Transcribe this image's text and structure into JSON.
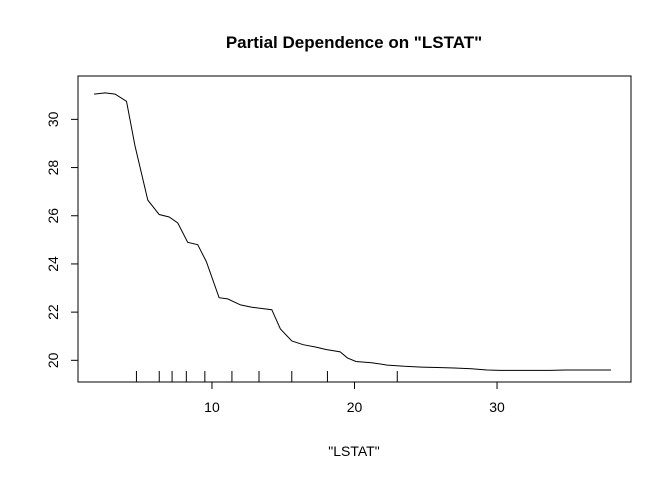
{
  "chart_data": {
    "type": "line",
    "title": "Partial Dependence on \"LSTAT\"",
    "xlabel": "\"LSTAT\"",
    "ylabel": "",
    "xlim": [
      0.6,
      39.4
    ],
    "ylim": [
      19.1,
      31.8
    ],
    "x_ticks": [
      10,
      20,
      30
    ],
    "y_ticks": [
      20,
      22,
      24,
      26,
      28,
      30
    ],
    "grid": false,
    "legend": "none",
    "series": [
      {
        "x": [
          1.73,
          2.5,
          3.2,
          4.0,
          4.6,
          5.5,
          6.3,
          7.0,
          7.6,
          8.3,
          9.0,
          9.6,
          10.5,
          11.1,
          12.0,
          12.8,
          13.5,
          14.2,
          14.8,
          15.6,
          16.4,
          17.3,
          18.0,
          19.0,
          19.5,
          20.1,
          21.2,
          22.3,
          23.5,
          24.7,
          25.8,
          27.0,
          28.2,
          29.3,
          30.2,
          31.4,
          32.6,
          33.7,
          34.8,
          36.0,
          38.0
        ],
        "y": [
          31.05,
          31.1,
          31.05,
          30.75,
          28.9,
          26.65,
          26.05,
          25.95,
          25.7,
          24.9,
          24.8,
          24.1,
          22.6,
          22.55,
          22.3,
          22.2,
          22.15,
          22.1,
          21.3,
          20.8,
          20.65,
          20.55,
          20.45,
          20.35,
          20.1,
          19.95,
          19.9,
          19.8,
          19.75,
          19.72,
          19.7,
          19.68,
          19.65,
          19.6,
          19.58,
          19.58,
          19.58,
          19.58,
          19.6,
          19.6,
          19.6
        ]
      }
    ],
    "rug": [
      4.7,
      6.3,
      7.2,
      8.2,
      9.5,
      11.4,
      13.3,
      15.6,
      18.1,
      23.0
    ]
  }
}
